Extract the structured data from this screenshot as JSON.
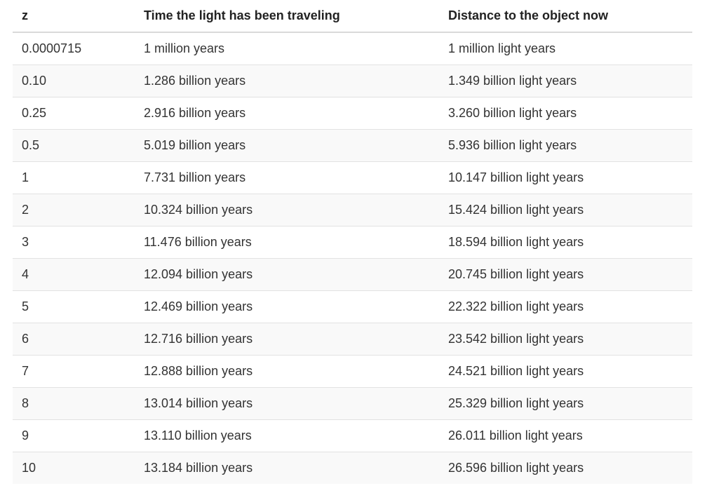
{
  "table": {
    "headers": [
      "z",
      "Time the light has been traveling",
      "Distance to the object now"
    ],
    "rows": [
      [
        "0.0000715",
        "1 million years",
        "1 million light years"
      ],
      [
        "0.10",
        "1.286 billion years",
        "1.349 billion light years"
      ],
      [
        "0.25",
        "2.916 billion years",
        "3.260 billion light years"
      ],
      [
        "0.5",
        "5.019 billion years",
        "5.936 billion light years"
      ],
      [
        "1",
        "7.731 billion years",
        "10.147 billion light years"
      ],
      [
        "2",
        "10.324 billion years",
        "15.424 billion light years"
      ],
      [
        "3",
        "11.476 billion years",
        "18.594 billion light years"
      ],
      [
        "4",
        "12.094 billion years",
        "20.745 billion light years"
      ],
      [
        "5",
        "12.469 billion years",
        "22.322 billion light years"
      ],
      [
        "6",
        "12.716 billion years",
        "23.542 billion light years"
      ],
      [
        "7",
        "12.888 billion years",
        "24.521 billion light years"
      ],
      [
        "8",
        "13.014 billion years",
        "25.329 billion light years"
      ],
      [
        "9",
        "13.110 billion years",
        "26.011 billion light years"
      ],
      [
        "10",
        "13.184 billion years",
        "26.596 billion light years"
      ]
    ]
  }
}
